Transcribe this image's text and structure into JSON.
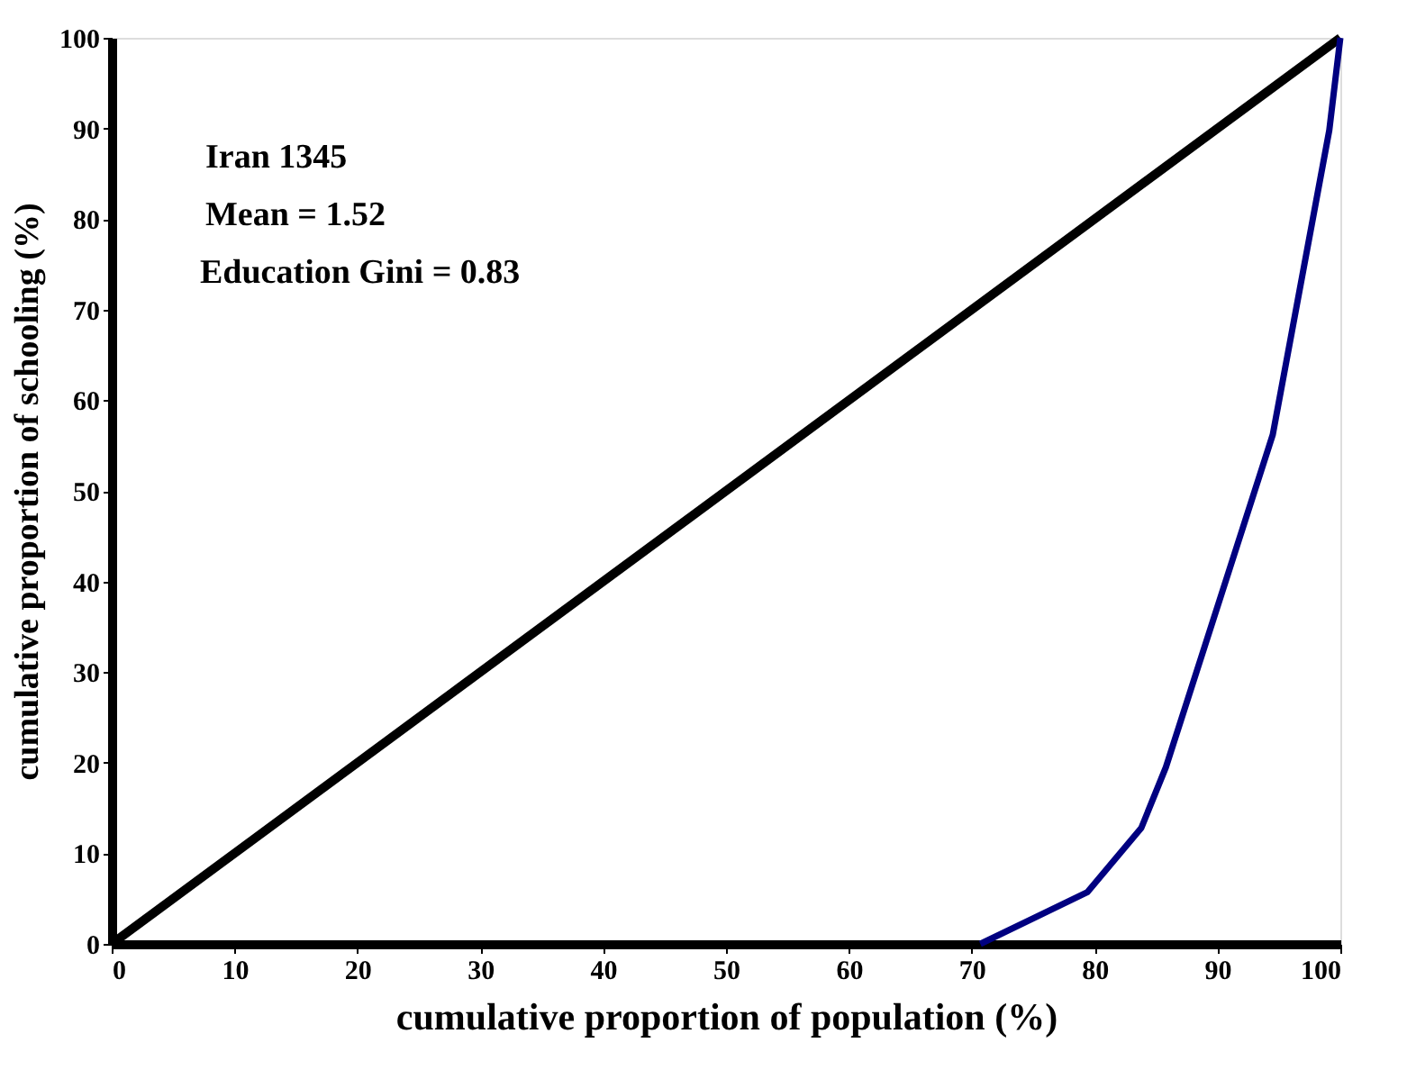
{
  "chart_data": {
    "type": "line",
    "xlabel": "cumulative proportion of population (%)",
    "ylabel": "cumulative proportion of schooling (%)",
    "annotations": [
      "Iran  1345",
      "Mean = 1.52",
      "Education Gini = 0.83"
    ],
    "series": [
      {
        "x": [
          0,
          100
        ],
        "values": [
          0,
          100
        ],
        "color": "#000000"
      },
      {
        "x": [
          70.7,
          79.4,
          83.8,
          85.8,
          94.5,
          99.1,
          100
        ],
        "values": [
          0,
          5.7,
          12.8,
          19.5,
          56.2,
          89.8,
          100
        ],
        "color": "#000080"
      }
    ],
    "xlim": [
      0,
      100
    ],
    "ylim": [
      0,
      100
    ],
    "xticks": [
      0,
      10,
      20,
      30,
      40,
      50,
      60,
      70,
      80,
      90,
      100
    ],
    "yticks": [
      0,
      10,
      20,
      30,
      40,
      50,
      60,
      70,
      80,
      90,
      100
    ],
    "grid": false,
    "marker": "none",
    "line_style": "solid"
  }
}
